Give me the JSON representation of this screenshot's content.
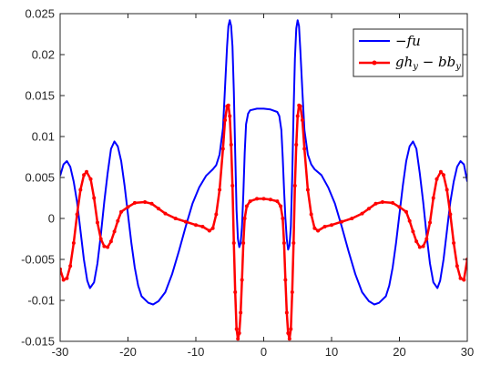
{
  "chart_data": {
    "type": "line",
    "title": "",
    "xlabel": "",
    "ylabel": "",
    "xlim": [
      -30,
      30
    ],
    "ylim": [
      -0.015,
      0.025
    ],
    "x_ticks": [
      -30,
      -20,
      -10,
      0,
      10,
      20,
      30
    ],
    "x_tick_labels": [
      "-30",
      "-20",
      "-10",
      "0",
      "10",
      "20",
      "30"
    ],
    "y_ticks": [
      -0.015,
      -0.01,
      -0.005,
      0,
      0.005,
      0.01,
      0.015,
      0.02,
      0.025
    ],
    "y_tick_labels": [
      "-0.015",
      "-0.01",
      "-0.005",
      "0",
      "0.005",
      "0.01",
      "0.015",
      "0.02",
      "0.025"
    ],
    "grid": false,
    "legend_position": "top-right",
    "series": [
      {
        "name": "−fu",
        "color": "#0000ff",
        "marker": "none",
        "points": [
          [
            -30,
            0.0052
          ],
          [
            -29.5,
            0.0066
          ],
          [
            -29.0,
            0.007
          ],
          [
            -28.5,
            0.0063
          ],
          [
            -28.0,
            0.0045
          ],
          [
            -27.5,
            0.002
          ],
          [
            -27.0,
            -0.0015
          ],
          [
            -26.5,
            -0.005
          ],
          [
            -26.0,
            -0.0076
          ],
          [
            -25.6,
            -0.0085
          ],
          [
            -25.0,
            -0.0078
          ],
          [
            -24.5,
            -0.0055
          ],
          [
            -24.0,
            -0.002
          ],
          [
            -23.5,
            0.002
          ],
          [
            -23.0,
            0.0055
          ],
          [
            -22.5,
            0.0085
          ],
          [
            -22.0,
            0.0094
          ],
          [
            -21.5,
            0.0088
          ],
          [
            -21.0,
            0.007
          ],
          [
            -20.5,
            0.004
          ],
          [
            -20.0,
            0.0005
          ],
          [
            -19.5,
            -0.003
          ],
          [
            -19.0,
            -0.006
          ],
          [
            -18.5,
            -0.0082
          ],
          [
            -18.0,
            -0.0095
          ],
          [
            -17.0,
            -0.0103
          ],
          [
            -16.3,
            -0.0105
          ],
          [
            -15.5,
            -0.0101
          ],
          [
            -14.5,
            -0.009
          ],
          [
            -13.5,
            -0.0068
          ],
          [
            -12.5,
            -0.004
          ],
          [
            -11.5,
            -0.001
          ],
          [
            -10.5,
            0.0018
          ],
          [
            -9.5,
            0.0038
          ],
          [
            -8.5,
            0.0052
          ],
          [
            -7.5,
            0.006
          ],
          [
            -7.0,
            0.0065
          ],
          [
            -6.5,
            0.0078
          ],
          [
            -6.0,
            0.011
          ],
          [
            -5.7,
            0.016
          ],
          [
            -5.4,
            0.021
          ],
          [
            -5.2,
            0.0235
          ],
          [
            -5.0,
            0.0242
          ],
          [
            -4.8,
            0.0235
          ],
          [
            -4.6,
            0.021
          ],
          [
            -4.4,
            0.0155
          ],
          [
            -4.2,
            0.008
          ],
          [
            -4.0,
            0.001
          ],
          [
            -3.8,
            -0.0025
          ],
          [
            -3.6,
            -0.0035
          ],
          [
            -3.4,
            -0.003
          ],
          [
            -3.2,
            -0.001
          ],
          [
            -3.0,
            0.003
          ],
          [
            -2.8,
            0.008
          ],
          [
            -2.6,
            0.0115
          ],
          [
            -2.3,
            0.0128
          ],
          [
            -2.0,
            0.0132
          ],
          [
            -1.0,
            0.0134
          ],
          [
            0,
            0.0134
          ],
          [
            1.0,
            0.0133
          ],
          [
            2.0,
            0.013
          ],
          [
            2.3,
            0.0125
          ],
          [
            2.6,
            0.0108
          ],
          [
            2.8,
            0.0075
          ],
          [
            3.0,
            0.0035
          ],
          [
            3.2,
            0.0
          ],
          [
            3.4,
            -0.0025
          ],
          [
            3.6,
            -0.0038
          ],
          [
            3.8,
            -0.0033
          ],
          [
            4.0,
            -0.001
          ],
          [
            4.2,
            0.005
          ],
          [
            4.4,
            0.013
          ],
          [
            4.6,
            0.0195
          ],
          [
            4.8,
            0.0232
          ],
          [
            5.0,
            0.0242
          ],
          [
            5.2,
            0.0235
          ],
          [
            5.4,
            0.0205
          ],
          [
            5.7,
            0.0155
          ],
          [
            6.0,
            0.0108
          ],
          [
            6.5,
            0.0078
          ],
          [
            7.0,
            0.0066
          ],
          [
            7.5,
            0.006
          ],
          [
            8.5,
            0.0053
          ],
          [
            9.5,
            0.0038
          ],
          [
            10.5,
            0.0018
          ],
          [
            11.5,
            -0.001
          ],
          [
            12.5,
            -0.004
          ],
          [
            13.5,
            -0.0068
          ],
          [
            14.5,
            -0.009
          ],
          [
            15.5,
            -0.0101
          ],
          [
            16.3,
            -0.0105
          ],
          [
            17.0,
            -0.0103
          ],
          [
            18.0,
            -0.0095
          ],
          [
            18.5,
            -0.0082
          ],
          [
            19.0,
            -0.006
          ],
          [
            19.5,
            -0.003
          ],
          [
            20.0,
            0.0005
          ],
          [
            20.5,
            0.004
          ],
          [
            21.0,
            0.007
          ],
          [
            21.5,
            0.0088
          ],
          [
            22.0,
            0.0094
          ],
          [
            22.5,
            0.0085
          ],
          [
            23.0,
            0.0055
          ],
          [
            23.5,
            0.002
          ],
          [
            24.0,
            -0.002
          ],
          [
            24.5,
            -0.0055
          ],
          [
            25.0,
            -0.0078
          ],
          [
            25.6,
            -0.0085
          ],
          [
            26.0,
            -0.0076
          ],
          [
            26.5,
            -0.005
          ],
          [
            27.0,
            -0.0015
          ],
          [
            27.5,
            0.002
          ],
          [
            28.0,
            0.0045
          ],
          [
            28.5,
            0.0063
          ],
          [
            29.0,
            0.007
          ],
          [
            29.5,
            0.0066
          ],
          [
            30,
            0.0045
          ]
        ]
      },
      {
        "name": "gh_y − bb_y",
        "color": "#ff0000",
        "marker": "dot",
        "points": [
          [
            -30,
            -0.0062
          ],
          [
            -29.5,
            -0.0075
          ],
          [
            -29.0,
            -0.0073
          ],
          [
            -28.5,
            -0.0058
          ],
          [
            -28.0,
            -0.003
          ],
          [
            -27.5,
            0.0005
          ],
          [
            -27.0,
            0.0035
          ],
          [
            -26.5,
            0.0053
          ],
          [
            -26.1,
            0.0057
          ],
          [
            -25.5,
            0.0048
          ],
          [
            -25.0,
            0.0025
          ],
          [
            -24.5,
            -0.0005
          ],
          [
            -24.0,
            -0.0025
          ],
          [
            -23.5,
            -0.0034
          ],
          [
            -23.0,
            -0.0035
          ],
          [
            -22.5,
            -0.0028
          ],
          [
            -22.0,
            -0.0016
          ],
          [
            -21.5,
            -0.0003
          ],
          [
            -21.0,
            0.0008
          ],
          [
            -20.0,
            0.0014
          ],
          [
            -19.0,
            0.0019
          ],
          [
            -17.5,
            0.002
          ],
          [
            -16.5,
            0.0018
          ],
          [
            -15.5,
            0.0012
          ],
          [
            -14.5,
            0.0006
          ],
          [
            -13.0,
            0.0
          ],
          [
            -11.5,
            -0.0004
          ],
          [
            -10.0,
            -0.0008
          ],
          [
            -9.0,
            -0.001
          ],
          [
            -8.0,
            -0.0015
          ],
          [
            -7.5,
            -0.0012
          ],
          [
            -7.0,
            0.0005
          ],
          [
            -6.5,
            0.0035
          ],
          [
            -6.0,
            0.0085
          ],
          [
            -5.7,
            0.012
          ],
          [
            -5.4,
            0.0137
          ],
          [
            -5.2,
            0.0138
          ],
          [
            -5.0,
            0.0125
          ],
          [
            -4.8,
            0.009
          ],
          [
            -4.6,
            0.004
          ],
          [
            -4.4,
            -0.003
          ],
          [
            -4.2,
            -0.009
          ],
          [
            -4.0,
            -0.0135
          ],
          [
            -3.8,
            -0.0147
          ],
          [
            -3.6,
            -0.014
          ],
          [
            -3.4,
            -0.0115
          ],
          [
            -3.2,
            -0.0075
          ],
          [
            -3.0,
            -0.003
          ],
          [
            -2.8,
            0.0
          ],
          [
            -2.5,
            0.0015
          ],
          [
            -2.0,
            0.0021
          ],
          [
            -1.0,
            0.0024
          ],
          [
            0,
            0.0024
          ],
          [
            1.0,
            0.0023
          ],
          [
            2.0,
            0.0021
          ],
          [
            2.5,
            0.0015
          ],
          [
            2.8,
            0.0
          ],
          [
            3.0,
            -0.003
          ],
          [
            3.2,
            -0.0075
          ],
          [
            3.4,
            -0.0115
          ],
          [
            3.6,
            -0.014
          ],
          [
            3.8,
            -0.0147
          ],
          [
            4.0,
            -0.0135
          ],
          [
            4.2,
            -0.009
          ],
          [
            4.4,
            -0.003
          ],
          [
            4.6,
            0.004
          ],
          [
            4.8,
            0.009
          ],
          [
            5.0,
            0.0125
          ],
          [
            5.2,
            0.0138
          ],
          [
            5.4,
            0.0137
          ],
          [
            5.7,
            0.012
          ],
          [
            6.0,
            0.0085
          ],
          [
            6.5,
            0.0035
          ],
          [
            7.0,
            0.0005
          ],
          [
            7.5,
            -0.0012
          ],
          [
            8.0,
            -0.0015
          ],
          [
            9.0,
            -0.001
          ],
          [
            10.0,
            -0.0008
          ],
          [
            11.5,
            -0.0004
          ],
          [
            13.0,
            0.0
          ],
          [
            14.5,
            0.0006
          ],
          [
            15.5,
            0.0012
          ],
          [
            16.5,
            0.0018
          ],
          [
            17.5,
            0.002
          ],
          [
            19.0,
            0.0019
          ],
          [
            20.0,
            0.0014
          ],
          [
            21.0,
            0.0008
          ],
          [
            21.5,
            -0.0003
          ],
          [
            22.0,
            -0.0016
          ],
          [
            22.5,
            -0.0028
          ],
          [
            23.0,
            -0.0035
          ],
          [
            23.5,
            -0.0034
          ],
          [
            24.0,
            -0.0025
          ],
          [
            24.5,
            -0.0005
          ],
          [
            25.0,
            0.0025
          ],
          [
            25.5,
            0.0048
          ],
          [
            26.1,
            0.0057
          ],
          [
            26.5,
            0.0053
          ],
          [
            27.0,
            0.0035
          ],
          [
            27.5,
            0.0005
          ],
          [
            28.0,
            -0.003
          ],
          [
            28.5,
            -0.0058
          ],
          [
            29.0,
            -0.0073
          ],
          [
            29.5,
            -0.0075
          ],
          [
            30,
            -0.005
          ]
        ]
      }
    ]
  }
}
